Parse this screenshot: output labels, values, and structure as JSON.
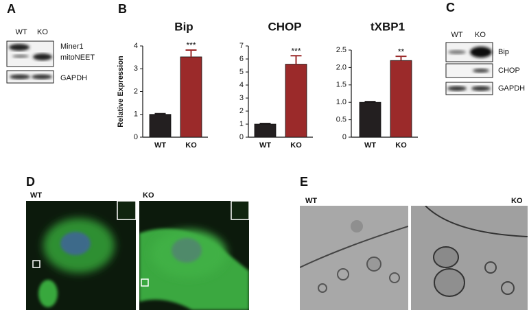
{
  "chart_data": [
    {
      "type": "bar",
      "title": "Bip",
      "ylabel": "Relative Expression",
      "categories": [
        "WT",
        "KO"
      ],
      "values": [
        1,
        3.52
      ],
      "errors": [
        0.03,
        0.3
      ],
      "colors": [
        "#231f20",
        "#9b2a2a"
      ],
      "annotations": [
        null,
        "***"
      ],
      "ylim": [
        0,
        4
      ],
      "yticks": [
        0,
        1,
        2,
        3,
        4
      ]
    },
    {
      "type": "bar",
      "title": "CHOP",
      "categories": [
        "WT",
        "KO"
      ],
      "values": [
        1,
        5.6
      ],
      "errors": [
        0.05,
        0.65
      ],
      "colors": [
        "#231f20",
        "#9b2a2a"
      ],
      "annotations": [
        null,
        "***"
      ],
      "ylim": [
        0,
        7
      ],
      "yticks": [
        0,
        1,
        2,
        3,
        4,
        5,
        6,
        7
      ]
    },
    {
      "type": "bar",
      "title": "tXBP1",
      "categories": [
        "WT",
        "KO"
      ],
      "values": [
        1,
        2.2
      ],
      "errors": [
        0.02,
        0.12
      ],
      "colors": [
        "#231f20",
        "#9b2a2a"
      ],
      "annotations": [
        null,
        "**"
      ],
      "ylim": [
        0,
        2.5
      ],
      "yticks": [
        0,
        0.5,
        {
          "value": 1,
          "label": "1.0"
        },
        1.5,
        {
          "value": 2,
          "label": "2.0"
        },
        2.5
      ]
    }
  ],
  "panels": {
    "a": {
      "letter": "A",
      "lanes": [
        "WT",
        "KO"
      ],
      "bands": [
        "Miner1",
        "mitoNEET",
        "GAPDH"
      ]
    },
    "b": {
      "letter": "B"
    },
    "c": {
      "letter": "C",
      "lanes": [
        "WT",
        "KO"
      ],
      "bands": [
        "Bip",
        "CHOP",
        "GAPDH"
      ]
    },
    "d": {
      "letter": "D",
      "images": [
        "WT",
        "KO"
      ]
    },
    "e": {
      "letter": "E",
      "images": [
        "WT",
        "KO"
      ]
    }
  }
}
